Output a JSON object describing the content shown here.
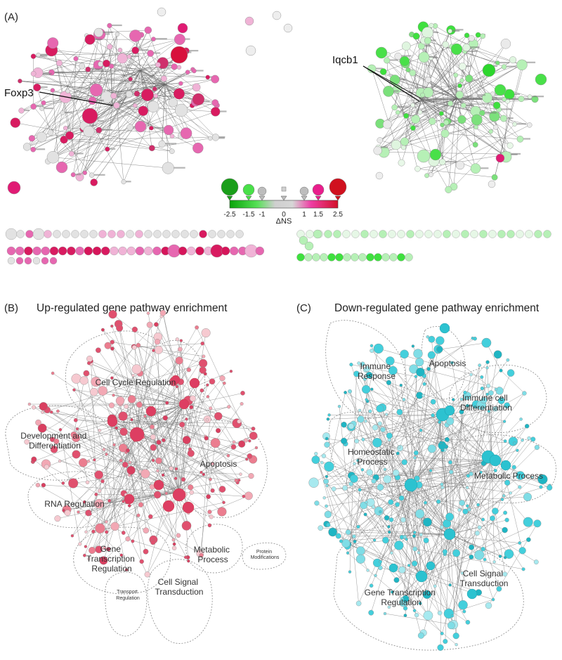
{
  "panels": {
    "a": {
      "letter": "(A)"
    },
    "b": {
      "letter": "(B)",
      "title": "Up-regulated gene pathway enrichment"
    },
    "c": {
      "letter": "(C)",
      "title": "Down-regulated gene pathway enrichment"
    }
  },
  "callouts": {
    "left": "Foxp3",
    "right": "Iqcb1"
  },
  "legend": {
    "title": "ΔNS",
    "ticks": [
      "-2.5",
      "-1.5",
      "-1",
      "0",
      "1",
      "1.5",
      "2.5"
    ],
    "colors": {
      "neg": "#1a9e1a",
      "negLight": "#49e049",
      "neutral": "#bdbdbd",
      "posLight": "#e91e8c",
      "pos": "#d0101e"
    }
  },
  "clusters_b": [
    "Cell Cycle Regulation",
    "Development and Differentiation",
    "Apoptosis",
    "RNA Regulation",
    "Gene Transcription Regulation",
    "Metabolic Process",
    "Protein Modifications",
    "Transport Regulation",
    "Cell Signal Transduction"
  ],
  "clusters_c": [
    "Immune Response",
    "Apoptosis",
    "Immune cell Differentiation",
    "Homeostatic Process",
    "Metabolic Process",
    "Cell Signal Transduction",
    "Gene Transcription Regulation"
  ],
  "colors": {
    "upNode": "#e0506e",
    "upNodeLight": "#f2a8b4",
    "downNode": "#43cfdc",
    "downNodeDark": "#1fb5c3",
    "pinkStrong": "#d81b60",
    "pinkMid": "#e667b0",
    "pinkLight": "#f0b3d6",
    "greenStrong": "#3ee03e",
    "greenLight": "#b6f0b6",
    "edge": "#6b6b6b",
    "grayNode": "#e2e2e2"
  }
}
